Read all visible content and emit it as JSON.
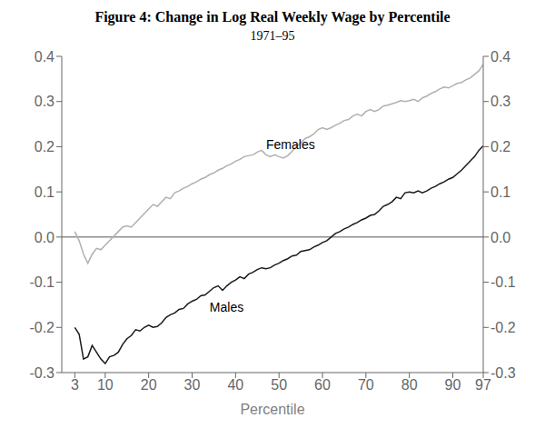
{
  "chart_data": {
    "type": "line",
    "title": "Figure 4: Change in Log Real Weekly Wage by Percentile",
    "subtitle": "1971–95",
    "x_label": "Percentile",
    "grid": false,
    "xlim": [
      0,
      97
    ],
    "xticks": [
      3,
      10,
      20,
      30,
      40,
      50,
      60,
      70,
      80,
      90,
      97
    ],
    "ylim": [
      -0.3,
      0.4
    ],
    "yticks": [
      -0.3,
      -0.2,
      -0.1,
      {
        "value": 0.0,
        "label": "0.0"
      },
      0.1,
      0.2,
      0.3,
      0.4
    ],
    "y2lim": [
      -0.3,
      0.4
    ],
    "y2ticks": [
      -0.3,
      -0.2,
      -0.1,
      {
        "value": 0.0,
        "label": "0.0"
      },
      0.1,
      0.2,
      0.3,
      0.4
    ],
    "x": [
      3,
      4,
      5,
      6,
      7,
      8,
      9,
      10,
      11,
      12,
      13,
      14,
      15,
      16,
      17,
      18,
      19,
      20,
      21,
      22,
      23,
      24,
      25,
      26,
      27,
      28,
      29,
      30,
      31,
      32,
      33,
      34,
      35,
      36,
      37,
      38,
      39,
      40,
      41,
      42,
      43,
      44,
      45,
      46,
      47,
      48,
      49,
      50,
      51,
      52,
      53,
      54,
      55,
      56,
      57,
      58,
      59,
      60,
      61,
      62,
      63,
      64,
      65,
      66,
      67,
      68,
      69,
      70,
      71,
      72,
      73,
      74,
      75,
      76,
      77,
      78,
      79,
      80,
      81,
      82,
      83,
      84,
      85,
      86,
      87,
      88,
      89,
      90,
      91,
      92,
      93,
      94,
      95,
      96,
      97
    ],
    "series": [
      {
        "name": "Females",
        "color": "#b0b0b0",
        "values": [
          0.012,
          -0.008,
          -0.038,
          -0.058,
          -0.038,
          -0.025,
          -0.028,
          -0.018,
          -0.008,
          0.002,
          0.012,
          0.022,
          0.025,
          0.022,
          0.032,
          0.042,
          0.052,
          0.062,
          0.072,
          0.068,
          0.078,
          0.088,
          0.085,
          0.098,
          0.102,
          0.108,
          0.112,
          0.118,
          0.122,
          0.128,
          0.132,
          0.138,
          0.142,
          0.148,
          0.152,
          0.158,
          0.162,
          0.168,
          0.172,
          0.178,
          0.18,
          0.182,
          0.188,
          0.192,
          0.182,
          0.178,
          0.182,
          0.178,
          0.175,
          0.18,
          0.19,
          0.2,
          0.208,
          0.218,
          0.222,
          0.228,
          0.238,
          0.242,
          0.238,
          0.242,
          0.248,
          0.252,
          0.258,
          0.26,
          0.268,
          0.272,
          0.268,
          0.278,
          0.282,
          0.278,
          0.282,
          0.29,
          0.292,
          0.295,
          0.298,
          0.302,
          0.3,
          0.302,
          0.305,
          0.3,
          0.308,
          0.312,
          0.318,
          0.322,
          0.328,
          0.332,
          0.33,
          0.335,
          0.34,
          0.342,
          0.348,
          0.352,
          0.36,
          0.368,
          0.382
        ]
      },
      {
        "name": "Males",
        "color": "#1a1a1a",
        "values": [
          -0.2,
          -0.215,
          -0.27,
          -0.265,
          -0.24,
          -0.255,
          -0.27,
          -0.28,
          -0.265,
          -0.262,
          -0.255,
          -0.238,
          -0.225,
          -0.218,
          -0.205,
          -0.208,
          -0.2,
          -0.195,
          -0.2,
          -0.198,
          -0.19,
          -0.178,
          -0.172,
          -0.168,
          -0.16,
          -0.158,
          -0.148,
          -0.142,
          -0.138,
          -0.13,
          -0.128,
          -0.12,
          -0.112,
          -0.108,
          -0.118,
          -0.108,
          -0.1,
          -0.095,
          -0.088,
          -0.092,
          -0.082,
          -0.078,
          -0.072,
          -0.068,
          -0.07,
          -0.068,
          -0.062,
          -0.058,
          -0.052,
          -0.048,
          -0.042,
          -0.04,
          -0.032,
          -0.03,
          -0.028,
          -0.022,
          -0.018,
          -0.012,
          -0.008,
          0.0,
          0.008,
          0.012,
          0.018,
          0.022,
          0.028,
          0.032,
          0.038,
          0.042,
          0.048,
          0.05,
          0.058,
          0.068,
          0.072,
          0.078,
          0.088,
          0.085,
          0.098,
          0.1,
          0.098,
          0.102,
          0.098,
          0.102,
          0.108,
          0.112,
          0.118,
          0.122,
          0.128,
          0.132,
          0.14,
          0.148,
          0.158,
          0.168,
          0.178,
          0.192,
          0.202
        ]
      }
    ],
    "reference_lines": [
      {
        "y": 0,
        "color": "#555555"
      }
    ],
    "annotations": [
      {
        "text": "Females",
        "x": 46,
        "y": 0.205
      },
      {
        "text": "Males",
        "x": 33,
        "y": -0.155
      }
    ]
  }
}
